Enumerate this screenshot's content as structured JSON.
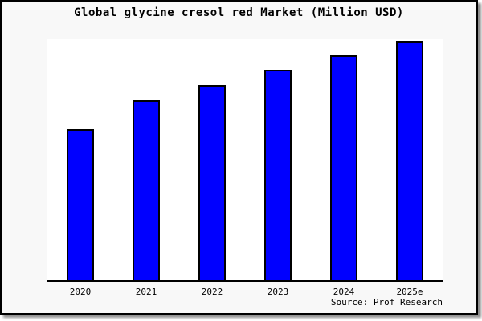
{
  "chart": {
    "title": "Global glycine cresol red Market (Million USD)",
    "source": "Source: Prof Research"
  },
  "chart_data": {
    "type": "bar",
    "title": "Global glycine cresol red Market (Million USD)",
    "categories": [
      "2020",
      "2021",
      "2022",
      "2023",
      "2024",
      "2025e"
    ],
    "values": [
      63,
      75.3,
      81.7,
      88,
      94,
      100
    ],
    "value_note": "no y-axis ticks or data labels shown; values are relative bar heights with tallest bar (2025e) = 100",
    "xlabel": "",
    "ylabel": "",
    "ylim": [
      0,
      101
    ],
    "grid": false,
    "legend": "none",
    "source_caption": "Source: Prof Research",
    "colors": {
      "bar_fill": "#0000ff",
      "bar_border": "#000000",
      "plot_background": "#ffffff",
      "page_background": "#f8f8f8",
      "text": "#000000"
    }
  }
}
